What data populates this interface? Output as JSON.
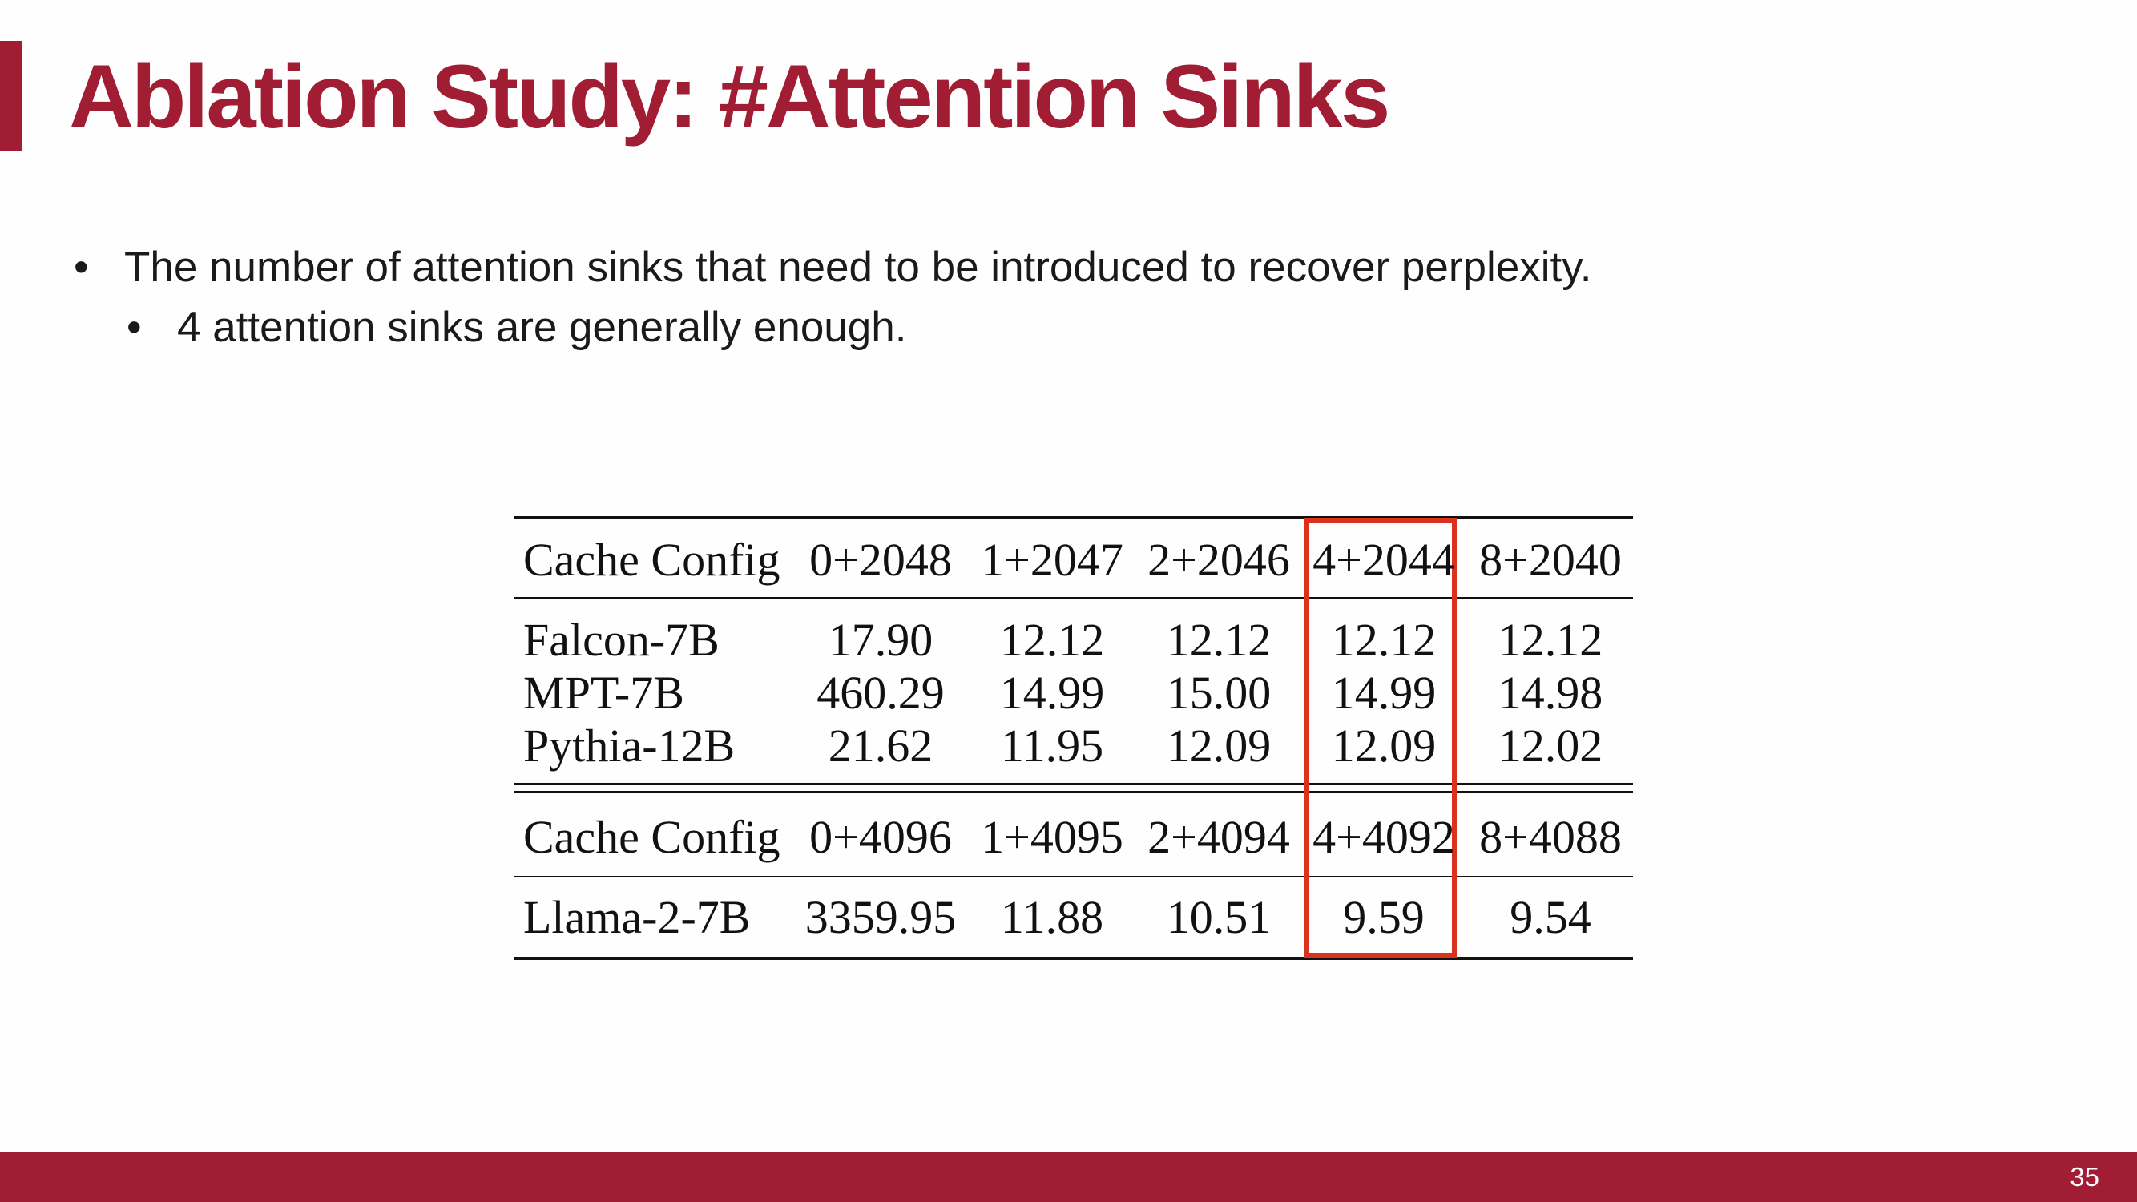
{
  "slide": {
    "title": "Ablation Study: #Attention Sinks",
    "bullets": [
      "The number of attention sinks that need to be introduced to recover perplexity.",
      "4 attention sinks are generally enough."
    ],
    "bullet_glyph": "•",
    "page_number": "35"
  },
  "colors": {
    "brand": "#a11d33",
    "highlight": "#d9321e"
  },
  "table": {
    "header1": [
      "Cache Config",
      "0+2048",
      "1+2047",
      "2+2046",
      "4+2044",
      "8+2040"
    ],
    "rows1": [
      [
        "Falcon-7B",
        "17.90",
        "12.12",
        "12.12",
        "12.12",
        "12.12"
      ],
      [
        "MPT-7B",
        "460.29",
        "14.99",
        "15.00",
        "14.99",
        "14.98"
      ],
      [
        "Pythia-12B",
        "21.62",
        "11.95",
        "12.09",
        "12.09",
        "12.02"
      ]
    ],
    "header2": [
      "Cache Config",
      "0+4096",
      "1+4095",
      "2+4094",
      "4+4092",
      "8+4088"
    ],
    "rows2": [
      [
        "Llama-2-7B",
        "3359.95",
        "11.88",
        "10.51",
        "9.59",
        "9.54"
      ]
    ],
    "highlighted_column": "4+2044 / 4+4092"
  }
}
